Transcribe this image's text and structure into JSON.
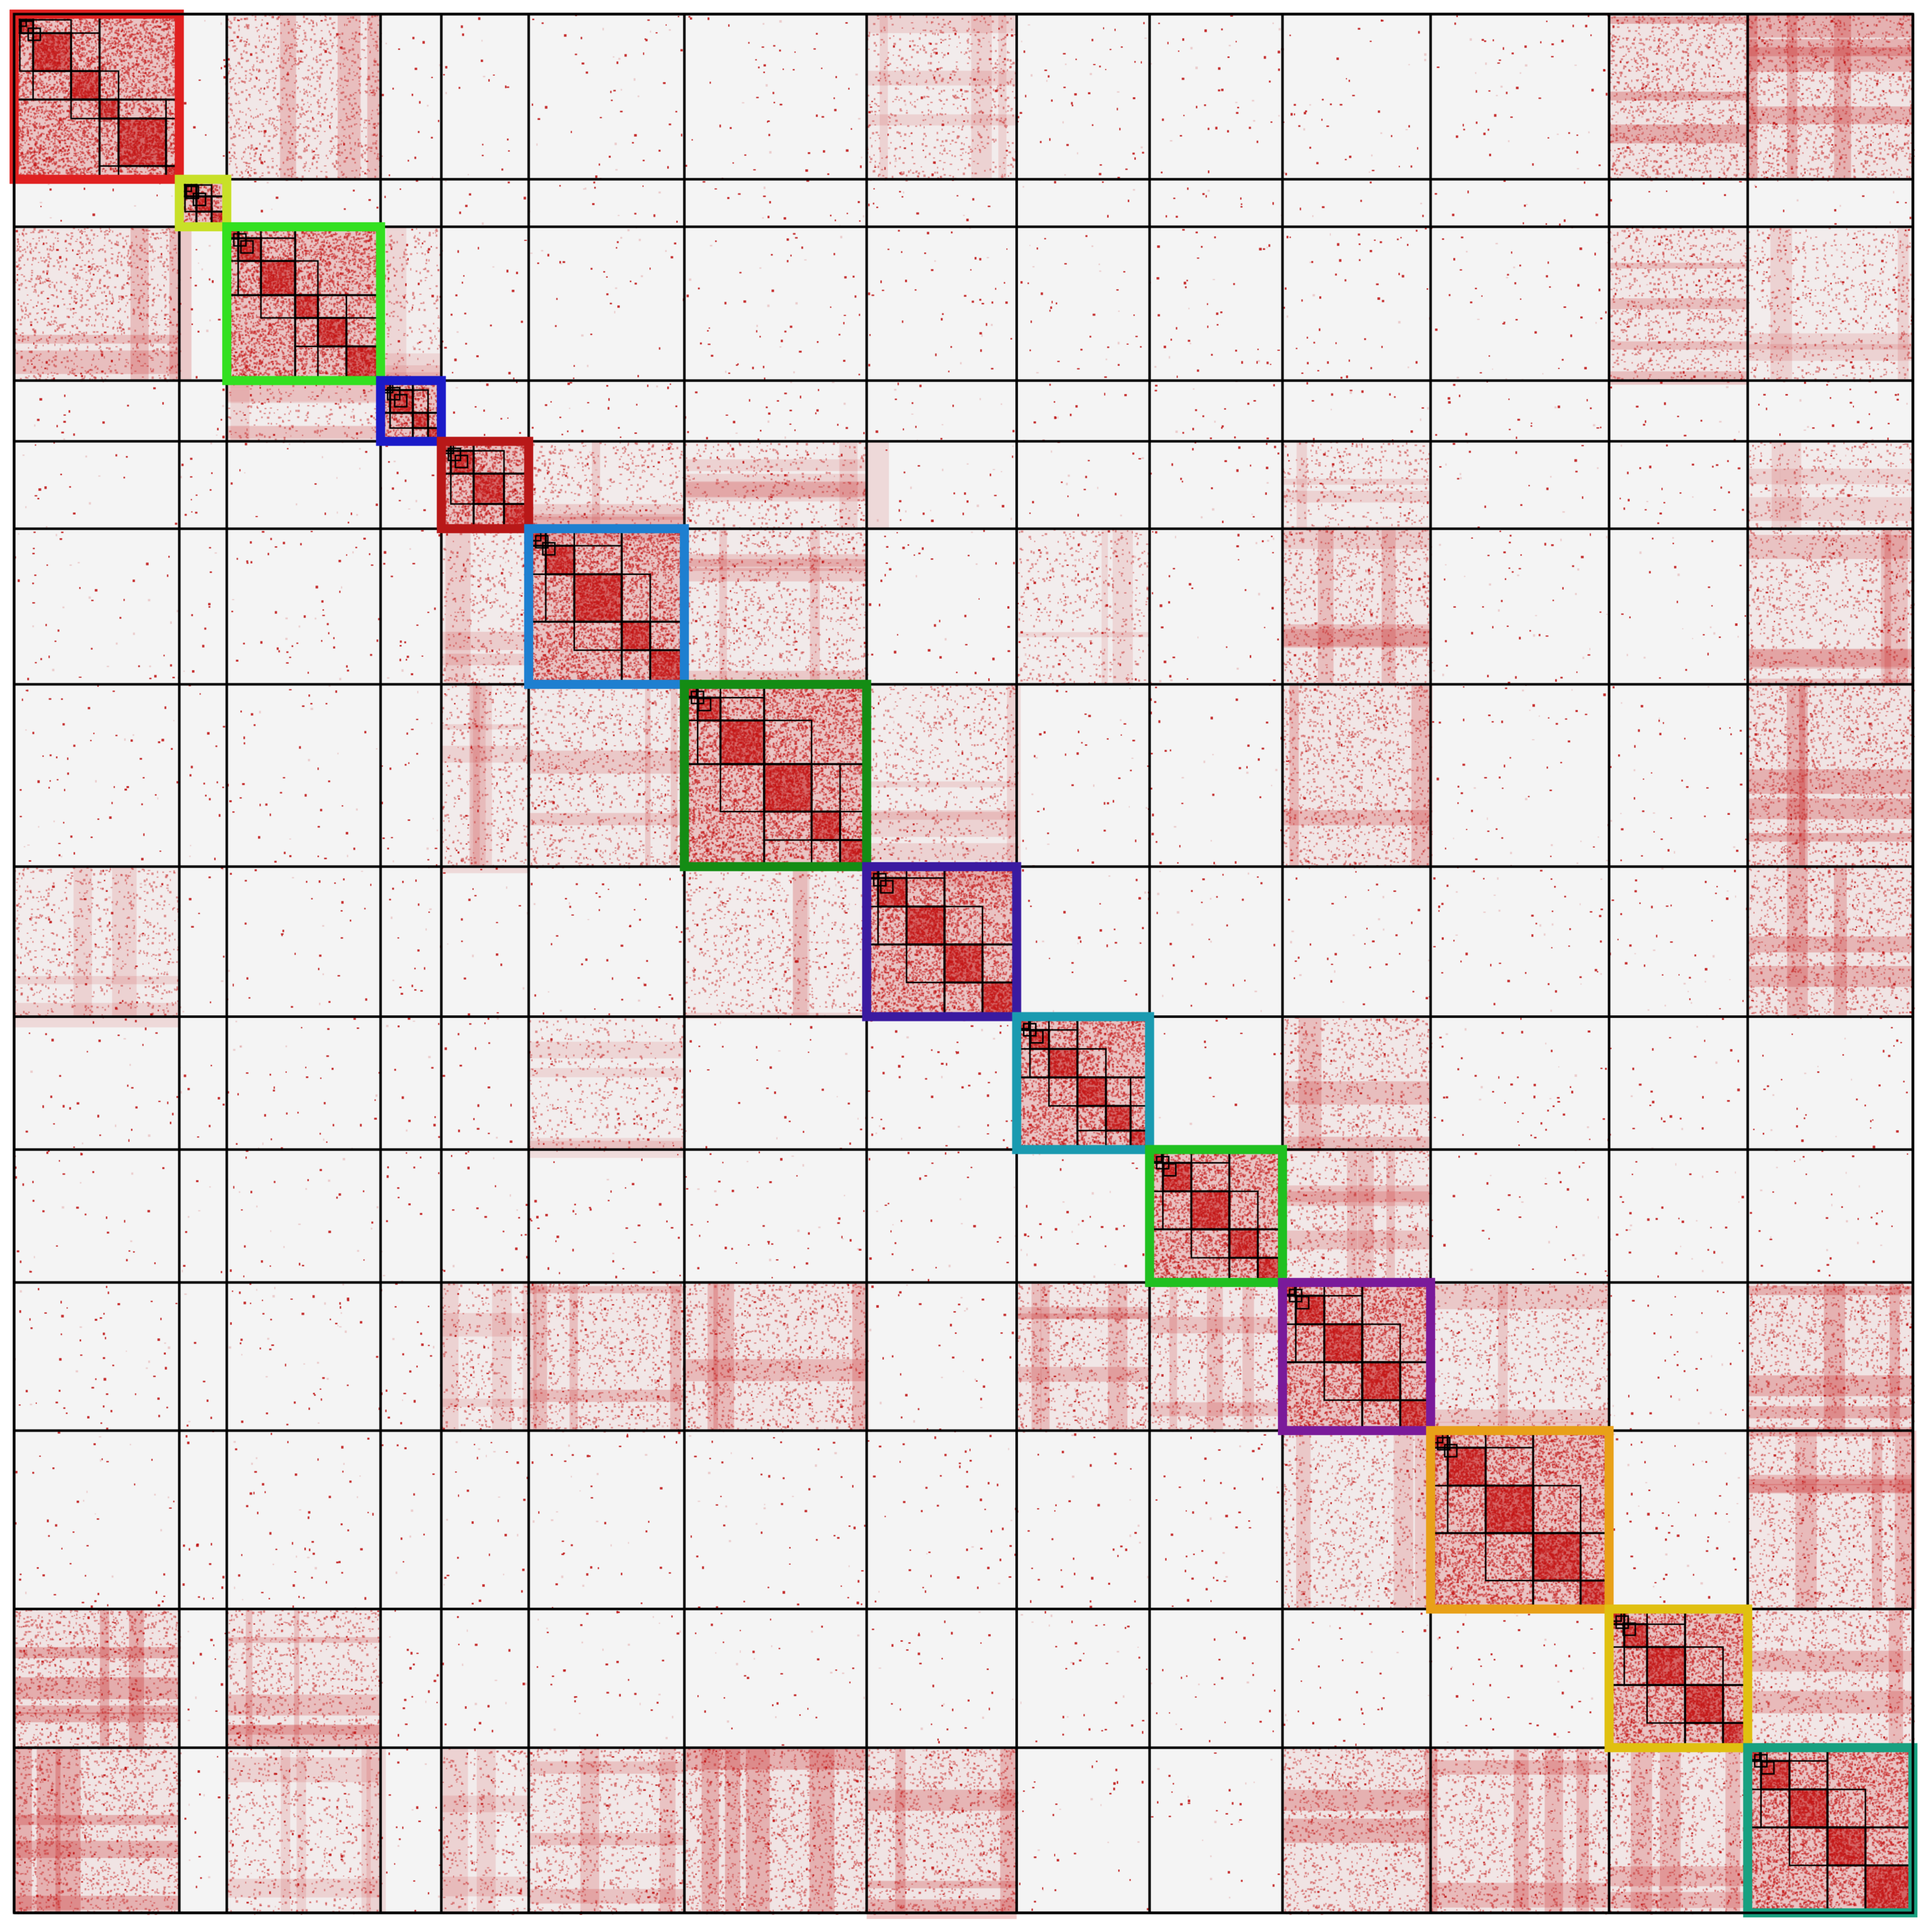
{
  "chart_data": {
    "type": "heatmap",
    "title": "",
    "xlabel": "",
    "ylabel": "",
    "colors": {
      "background": "#f4f4f4",
      "contact": "#c41616",
      "grid": "#000000"
    },
    "boundaries": [
      0,
      87,
      112,
      193,
      225,
      271,
      353,
      449,
      528,
      598,
      668,
      746,
      840,
      913,
      1000
    ],
    "blocks": [
      {
        "start": 0,
        "end": 87,
        "color": "#e02020",
        "sub": [
          3,
          10,
          30,
          45,
          55,
          80
        ]
      },
      {
        "start": 87,
        "end": 112,
        "color": "#c8e028",
        "sub": [
          90,
          96,
          104
        ]
      },
      {
        "start": 112,
        "end": 193,
        "color": "#33e020",
        "sub": [
          118,
          130,
          148,
          160,
          175
        ]
      },
      {
        "start": 193,
        "end": 225,
        "color": "#1a1ac8",
        "sub": [
          198,
          210,
          218
        ]
      },
      {
        "start": 225,
        "end": 271,
        "color": "#b81818",
        "sub": [
          230,
          242,
          258
        ]
      },
      {
        "start": 271,
        "end": 353,
        "color": "#1e7fd0",
        "sub": [
          280,
          295,
          320,
          335
        ]
      },
      {
        "start": 353,
        "end": 449,
        "color": "#148c14",
        "sub": [
          360,
          372,
          395,
          420,
          435
        ]
      },
      {
        "start": 449,
        "end": 528,
        "color": "#3a1aa0",
        "sub": [
          455,
          470,
          490,
          510
        ]
      },
      {
        "start": 528,
        "end": 598,
        "color": "#1a9ab0",
        "sub": [
          535,
          545,
          560,
          575,
          588
        ]
      },
      {
        "start": 598,
        "end": 668,
        "color": "#20c020",
        "sub": [
          605,
          620,
          640,
          655
        ]
      },
      {
        "start": 668,
        "end": 746,
        "color": "#7a1a9a",
        "sub": [
          675,
          690,
          710,
          730
        ]
      },
      {
        "start": 746,
        "end": 840,
        "color": "#e8a018",
        "sub": [
          755,
          775,
          800,
          825
        ]
      },
      {
        "start": 840,
        "end": 913,
        "color": "#e0c010",
        "sub": [
          848,
          860,
          880,
          900
        ]
      },
      {
        "start": 913,
        "end": 1000,
        "color": "#18a080",
        "sub": [
          920,
          935,
          955,
          975
        ]
      }
    ],
    "off_diagonal_enrichment": [
      {
        "a": 0,
        "b": 12,
        "level": 0.75
      },
      {
        "a": 0,
        "b": 13,
        "level": 0.7
      },
      {
        "a": 0,
        "b": 2,
        "level": 0.55
      },
      {
        "a": 2,
        "b": 12,
        "level": 0.55
      },
      {
        "a": 2,
        "b": 13,
        "level": 0.35
      },
      {
        "a": 0,
        "b": 7,
        "level": 0.35
      },
      {
        "a": 4,
        "b": 5,
        "level": 0.4
      },
      {
        "a": 4,
        "b": 6,
        "level": 0.35
      },
      {
        "a": 5,
        "b": 6,
        "level": 0.45
      },
      {
        "a": 5,
        "b": 10,
        "level": 0.55
      },
      {
        "a": 5,
        "b": 13,
        "level": 0.5
      },
      {
        "a": 6,
        "b": 10,
        "level": 0.6
      },
      {
        "a": 6,
        "b": 13,
        "level": 0.7
      },
      {
        "a": 6,
        "b": 7,
        "level": 0.35
      },
      {
        "a": 7,
        "b": 13,
        "level": 0.65
      },
      {
        "a": 8,
        "b": 10,
        "level": 0.55
      },
      {
        "a": 9,
        "b": 10,
        "level": 0.5
      },
      {
        "a": 10,
        "b": 11,
        "level": 0.45
      },
      {
        "a": 10,
        "b": 13,
        "level": 0.7
      },
      {
        "a": 11,
        "b": 13,
        "level": 0.6
      },
      {
        "a": 12,
        "b": 13,
        "level": 0.6
      },
      {
        "a": 4,
        "b": 13,
        "level": 0.35
      },
      {
        "a": 3,
        "b": 2,
        "level": 0.3
      },
      {
        "a": 5,
        "b": 8,
        "level": 0.3
      },
      {
        "a": 4,
        "b": 10,
        "level": 0.35
      }
    ]
  }
}
